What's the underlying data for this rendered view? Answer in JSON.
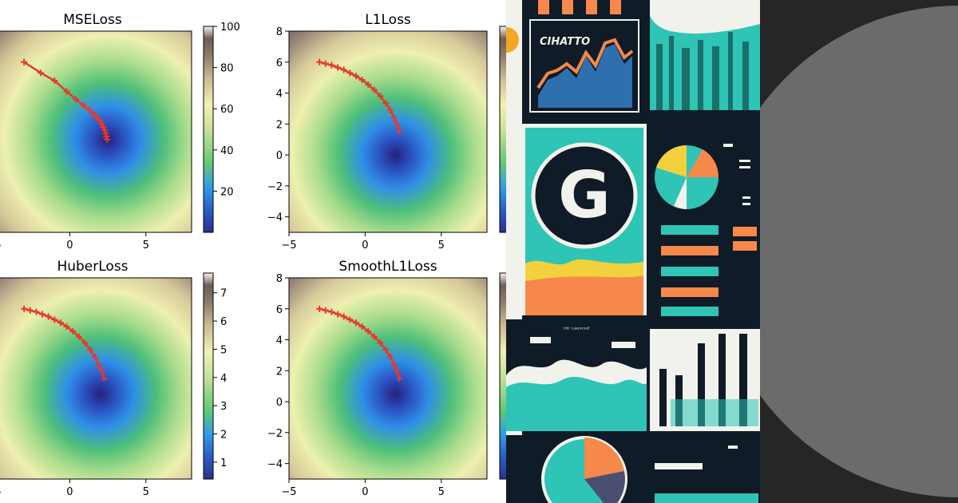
{
  "page": {
    "background": "#ffffff"
  },
  "chart_data": [
    {
      "type": "heatmap",
      "title": "MSELoss",
      "xlim": [
        -5,
        8
      ],
      "ylim": [
        -5,
        8
      ],
      "xticks": [
        -5,
        0,
        5
      ],
      "yticks": [
        -4,
        -2,
        0,
        2,
        4,
        6,
        8
      ],
      "colorbar": {
        "ticks": [
          20,
          40,
          60,
          80,
          100
        ],
        "range": [
          0,
          100
        ],
        "colormap": "terrain"
      },
      "minimum": [
        2.5,
        1.0
      ],
      "trajectory": {
        "color": "#e8392b",
        "marker": "+",
        "x": [
          -3.0,
          -1.9,
          -1.0,
          -0.2,
          0.4,
          0.9,
          1.3,
          1.6,
          1.8,
          2.0,
          2.1,
          2.2,
          2.3,
          2.35,
          2.4,
          2.45
        ],
        "y": [
          6.0,
          5.3,
          4.8,
          4.1,
          3.6,
          3.2,
          2.9,
          2.6,
          2.4,
          2.2,
          2.0,
          1.8,
          1.6,
          1.4,
          1.2,
          1.0
        ]
      }
    },
    {
      "type": "heatmap",
      "title": "L1Loss",
      "xlim": [
        -5,
        8
      ],
      "ylim": [
        -5,
        8
      ],
      "xticks": [
        -5,
        0,
        5
      ],
      "yticks": [
        -4,
        -2,
        0,
        2,
        4,
        6,
        8
      ],
      "colorbar": {
        "ticks": [],
        "range": [
          0,
          12
        ],
        "colormap": "terrain"
      },
      "minimum": [
        2.0,
        0.0
      ],
      "trajectory": {
        "color": "#e8392b",
        "marker": "+",
        "x": [
          -3.0,
          -2.6,
          -2.2,
          -1.8,
          -1.4,
          -1.0,
          -0.6,
          -0.2,
          0.2,
          0.6,
          1.0,
          1.35,
          1.65,
          1.9,
          2.1,
          2.25
        ],
        "y": [
          6.0,
          5.9,
          5.8,
          5.65,
          5.5,
          5.3,
          5.1,
          4.85,
          4.55,
          4.2,
          3.8,
          3.35,
          2.9,
          2.4,
          1.95,
          1.5
        ]
      }
    },
    {
      "type": "heatmap",
      "title": "HuberLoss",
      "xlim": [
        -5,
        8
      ],
      "ylim": [
        -5,
        8
      ],
      "xticks": [
        -5,
        0,
        5
      ],
      "yticks": [
        -4,
        -2,
        0,
        2,
        4,
        6,
        8
      ],
      "colorbar": {
        "ticks": [
          1,
          2,
          3,
          4,
          5,
          6,
          7
        ],
        "range": [
          0.4,
          7.7
        ],
        "colormap": "terrain"
      },
      "minimum": [
        2.0,
        0.5
      ],
      "trajectory": {
        "color": "#e8392b",
        "marker": "+",
        "x": [
          -3.0,
          -2.6,
          -2.2,
          -1.8,
          -1.4,
          -1.0,
          -0.6,
          -0.2,
          0.2,
          0.6,
          1.0,
          1.35,
          1.65,
          1.9,
          2.1,
          2.25
        ],
        "y": [
          6.0,
          5.9,
          5.8,
          5.65,
          5.5,
          5.3,
          5.1,
          4.85,
          4.55,
          4.2,
          3.8,
          3.35,
          2.9,
          2.4,
          1.95,
          1.5
        ]
      }
    },
    {
      "type": "heatmap",
      "title": "SmoothL1Loss",
      "xlim": [
        -5,
        8
      ],
      "ylim": [
        -5,
        8
      ],
      "xticks": [
        -5,
        0,
        5
      ],
      "yticks": [
        -4,
        -2,
        0,
        2,
        4,
        6,
        8
      ],
      "colorbar": {
        "ticks": [],
        "range": [
          0.4,
          7.7
        ],
        "colormap": "terrain"
      },
      "minimum": [
        2.0,
        0.5
      ],
      "trajectory": {
        "color": "#e8392b",
        "marker": "+",
        "x": [
          -3.0,
          -2.6,
          -2.2,
          -1.8,
          -1.4,
          -1.0,
          -0.6,
          -0.2,
          0.2,
          0.6,
          1.0,
          1.35,
          1.65,
          1.9,
          2.1,
          2.25
        ],
        "y": [
          6.0,
          5.9,
          5.8,
          5.65,
          5.5,
          5.3,
          5.1,
          4.85,
          4.55,
          4.2,
          3.8,
          3.35,
          2.9,
          2.4,
          1.95,
          1.5
        ]
      }
    }
  ],
  "collage": {
    "colors": {
      "navy": "#0f1b26",
      "teal": "#2ec4b6",
      "orange": "#f5884a",
      "yellow": "#f2d13d",
      "cream": "#f2f2ec"
    },
    "logo_letter": "G",
    "heading_text": "CIHATTO",
    "note_text": "ᴴᵗᴵ ᴸᵃᵘⁿᶜᵉᵈ"
  },
  "strip": {
    "background": "#262626",
    "circle_color": "#6b6b6b"
  }
}
